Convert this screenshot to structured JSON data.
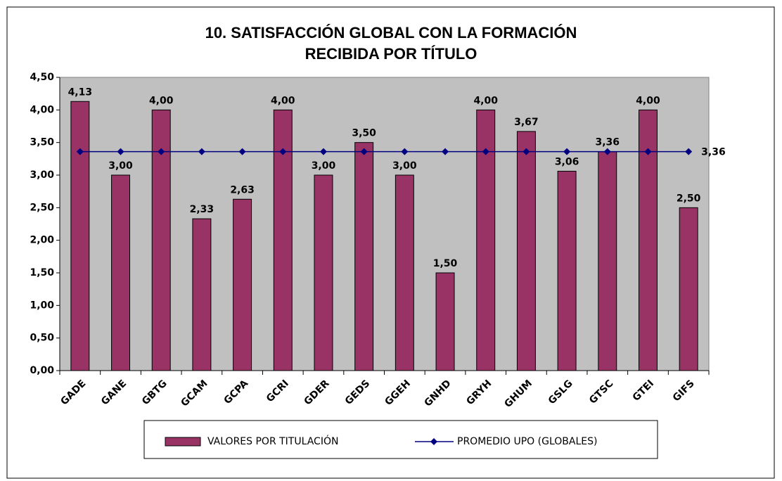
{
  "chart_data": {
    "type": "bar",
    "title": [
      "10. SATISFACCIÓN GLOBAL CON LA FORMACIÓN",
      "RECIBIDA POR TÍTULO"
    ],
    "categories": [
      "GADE",
      "GANE",
      "GBTG",
      "GCAM",
      "GCPA",
      "GCRI",
      "GDER",
      "GEDS",
      "GGEH",
      "GNHD",
      "GRYH",
      "GHUM",
      "GSLG",
      "GTSC",
      "GTEI",
      "GIFS"
    ],
    "series": [
      {
        "name": "VALORES POR TITULACIÓN",
        "type": "bar",
        "color": "#993366",
        "values": [
          4.13,
          3.0,
          4.0,
          2.33,
          2.63,
          4.0,
          3.0,
          3.5,
          3.0,
          1.5,
          4.0,
          3.67,
          3.06,
          3.36,
          4.0,
          2.5
        ],
        "value_labels": [
          "4,13",
          "3,00",
          "4,00",
          "2,33",
          "2,63",
          "4,00",
          "3,00",
          "3,50",
          "3,00",
          "1,50",
          "4,00",
          "3,67",
          "3,06",
          "3,36",
          "4,00",
          "2,50"
        ]
      },
      {
        "name": "PROMEDIO UPO (GLOBALES)",
        "type": "line",
        "color": "#000080",
        "values": [
          3.36,
          3.36,
          3.36,
          3.36,
          3.36,
          3.36,
          3.36,
          3.36,
          3.36,
          3.36,
          3.36,
          3.36,
          3.36,
          3.36,
          3.36,
          3.36
        ],
        "value_labels": [
          null,
          null,
          null,
          null,
          null,
          null,
          null,
          null,
          null,
          null,
          null,
          null,
          null,
          null,
          null,
          "3,36"
        ]
      }
    ],
    "ylim": [
      0,
      4.5
    ],
    "yticks": [
      {
        "value": 0,
        "label": "0,00"
      },
      {
        "value": 0.5,
        "label": "0,50"
      },
      {
        "value": 1,
        "label": "1,00"
      },
      {
        "value": 1.5,
        "label": "1,50"
      },
      {
        "value": 2,
        "label": "2,00"
      },
      {
        "value": 2.5,
        "label": "2,50"
      },
      {
        "value": 3,
        "label": "3,00"
      },
      {
        "value": 3.5,
        "label": "3,50"
      },
      {
        "value": 4,
        "label": "4,00"
      },
      {
        "value": 4.5,
        "label": "4,50"
      }
    ],
    "grid": false,
    "legend": "bottom",
    "plot_background": "#c0c0c0"
  }
}
